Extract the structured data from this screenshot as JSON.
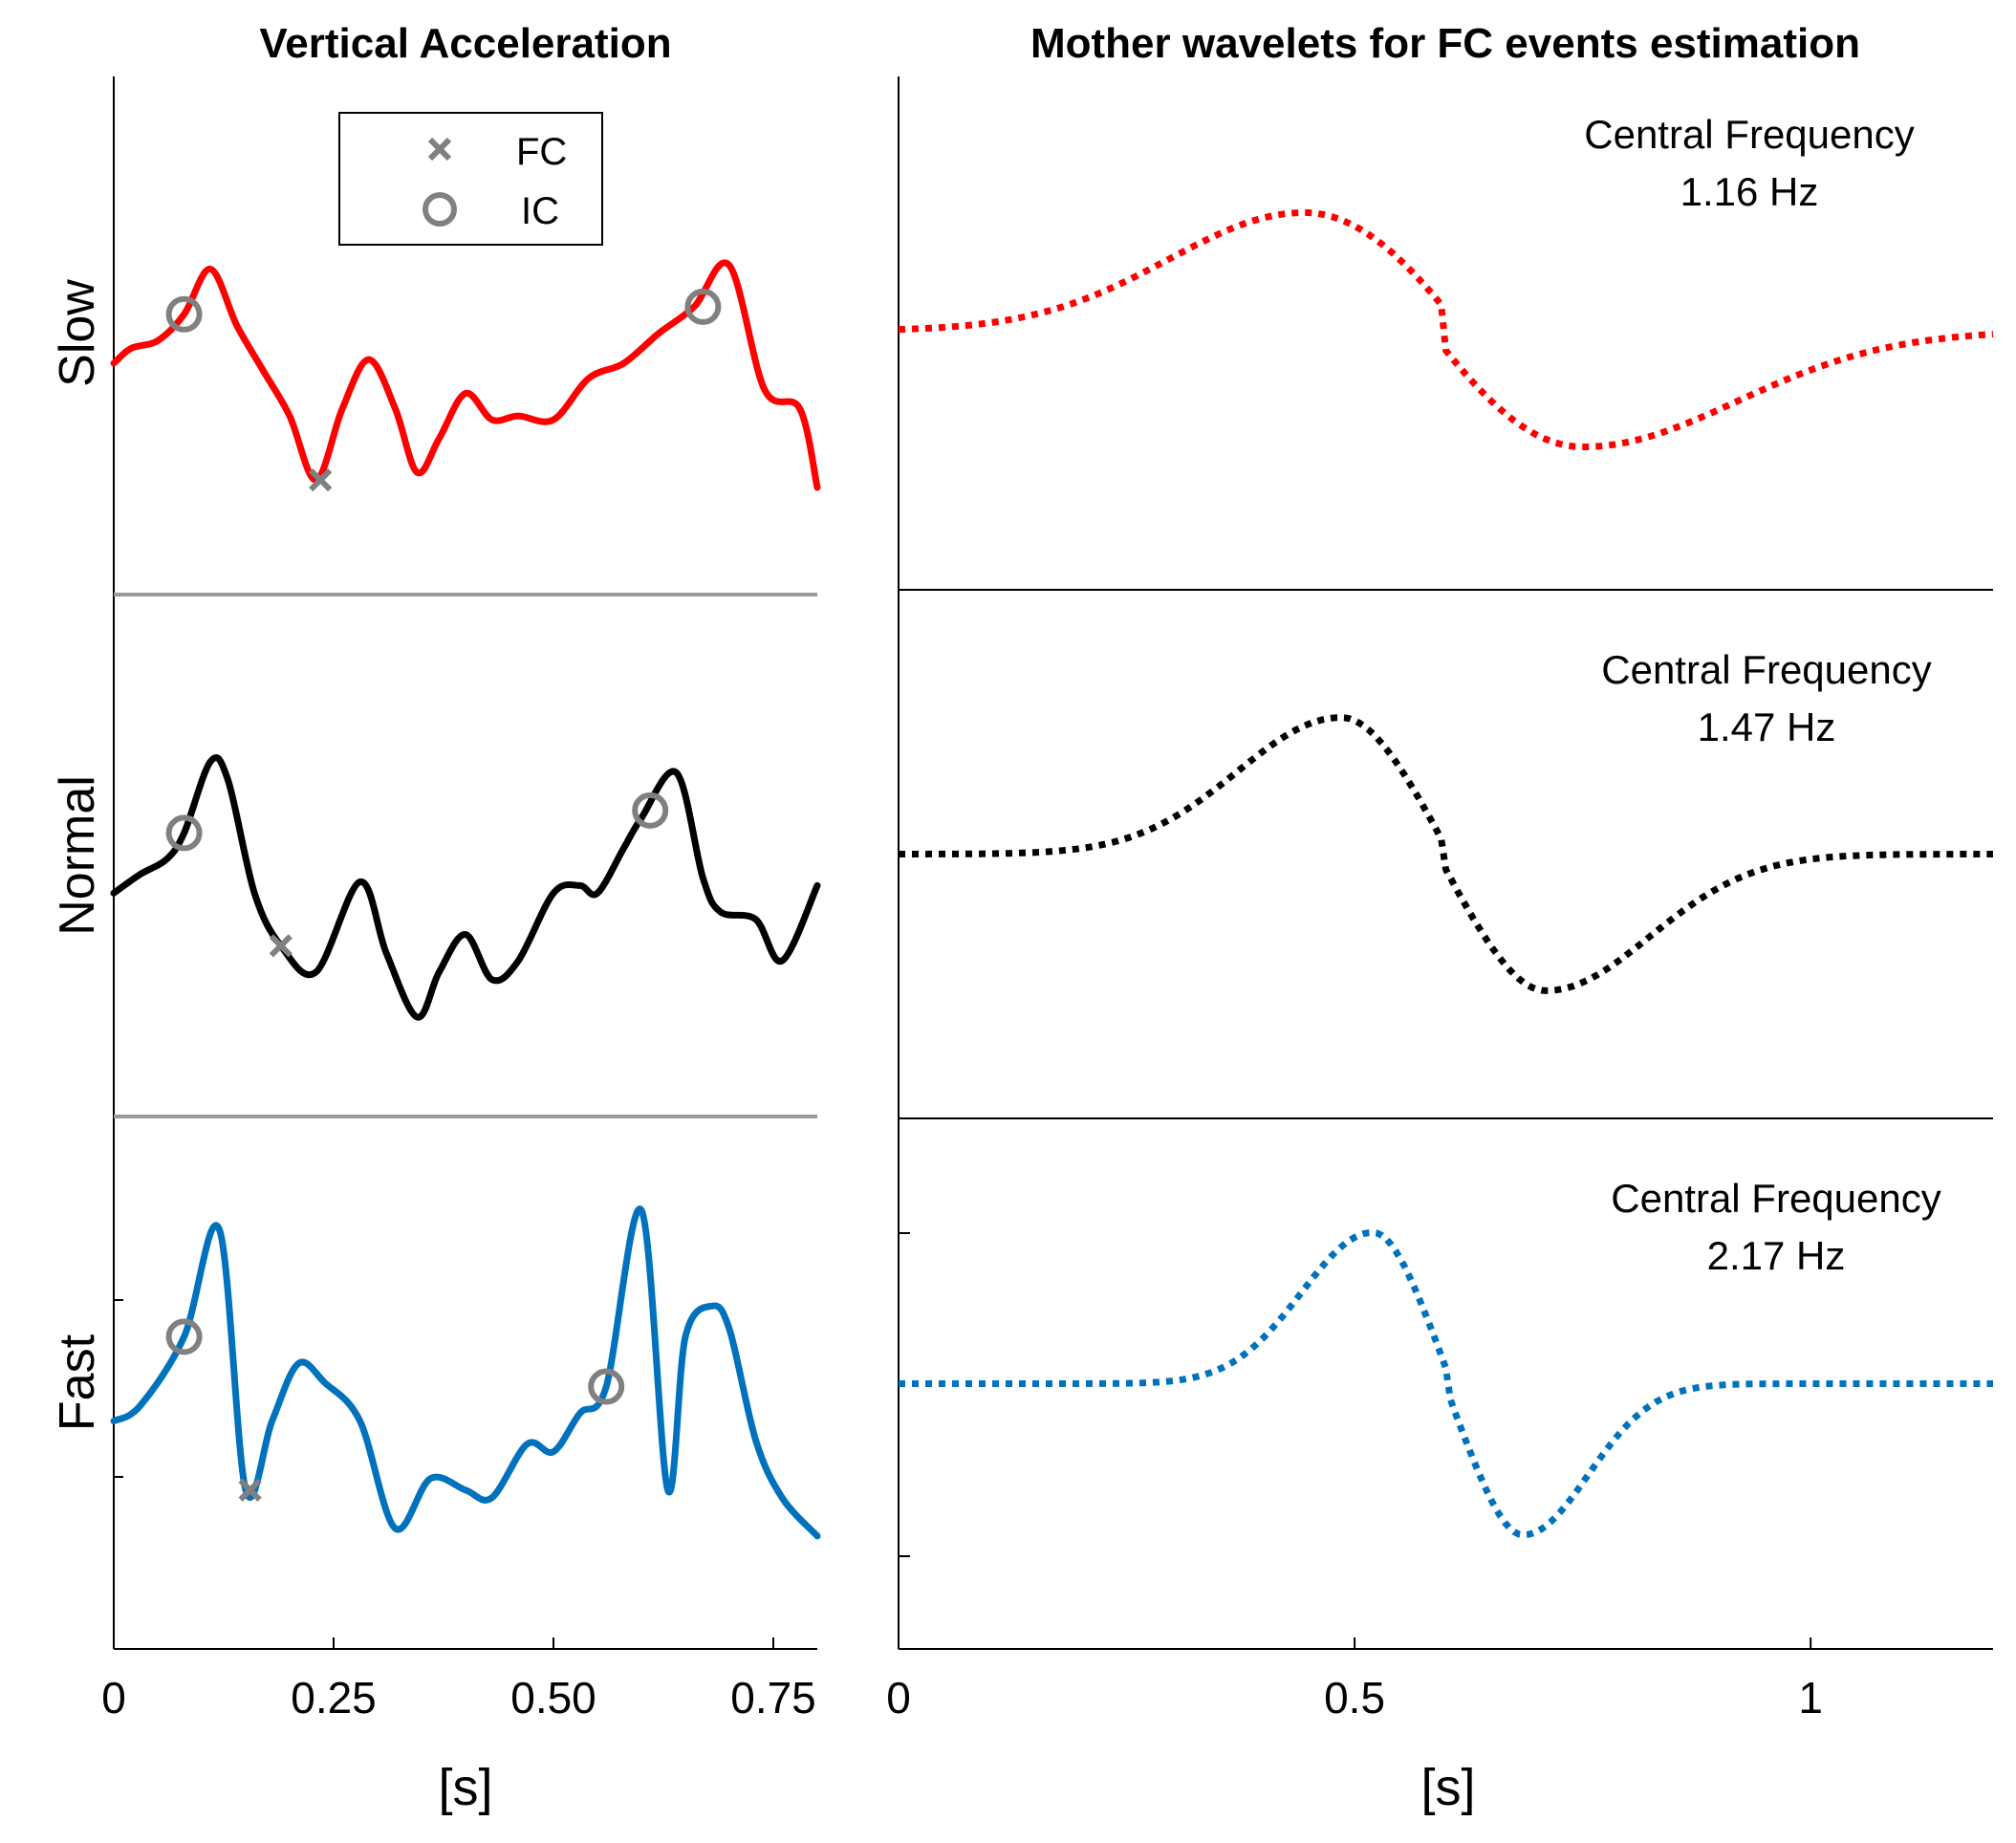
{
  "chart_data": [
    {
      "type": "line",
      "panel": "left",
      "title": "Vertical Acceleration",
      "xlabel": "[s]",
      "xlim": [
        0,
        0.8
      ],
      "x_ticks": [
        0,
        0.25,
        0.5,
        0.75
      ],
      "x_tick_labels": [
        "0",
        "0.25",
        "0.50",
        "0.75"
      ],
      "legend": {
        "placement": "top-center",
        "entries": [
          {
            "label": "FC",
            "marker": "x"
          },
          {
            "label": "IC",
            "marker": "o"
          }
        ]
      },
      "marker_color": "#808080",
      "rows": [
        {
          "name": "Slow",
          "color": "#ff0000",
          "ylim": [
            0,
            100
          ],
          "x": [
            0,
            0.02,
            0.05,
            0.08,
            0.11,
            0.14,
            0.17,
            0.2,
            0.23,
            0.26,
            0.29,
            0.32,
            0.345,
            0.37,
            0.4,
            0.43,
            0.46,
            0.5,
            0.54,
            0.58,
            0.62,
            0.66,
            0.7,
            0.74,
            0.78,
            0.8
          ],
          "y": [
            42,
            46,
            48,
            55,
            67,
            52,
            40,
            28,
            11,
            30,
            43,
            30,
            13,
            22,
            34,
            27,
            28,
            27,
            38,
            42,
            50,
            57,
            68,
            35,
            30,
            9
          ],
          "fc_events": [
            {
              "x": 0.235,
              "y": 11
            }
          ],
          "ic_events": [
            {
              "x": 0.08,
              "y": 55
            },
            {
              "x": 0.67,
              "y": 57
            }
          ]
        },
        {
          "name": "Normal",
          "color": "#000000",
          "ylim": [
            0,
            100
          ],
          "x": [
            0,
            0.03,
            0.06,
            0.08,
            0.11,
            0.13,
            0.16,
            0.19,
            0.23,
            0.28,
            0.31,
            0.345,
            0.37,
            0.4,
            0.43,
            0.46,
            0.5,
            0.53,
            0.55,
            0.58,
            0.6,
            0.64,
            0.67,
            0.69,
            0.73,
            0.76,
            0.8
          ],
          "y": [
            40,
            45,
            49,
            56,
            75,
            70,
            40,
            26,
            19,
            43,
            24,
            7,
            19,
            29,
            17,
            22,
            40,
            42,
            40,
            52,
            60,
            72,
            44,
            35,
            33,
            22,
            42
          ],
          "fc_events": [
            {
              "x": 0.19,
              "y": 26
            }
          ],
          "ic_events": [
            {
              "x": 0.08,
              "y": 56
            },
            {
              "x": 0.61,
              "y": 62
            }
          ]
        },
        {
          "name": "Fast",
          "color": "#0072bd",
          "ylim": [
            0,
            100
          ],
          "x": [
            0,
            0.03,
            0.08,
            0.12,
            0.15,
            0.18,
            0.21,
            0.24,
            0.28,
            0.32,
            0.36,
            0.4,
            0.43,
            0.47,
            0.5,
            0.53,
            0.56,
            0.6,
            0.63,
            0.65,
            0.68,
            0.7,
            0.73,
            0.76,
            0.8
          ],
          "y": [
            40,
            44,
            62,
            90,
            22,
            40,
            55,
            50,
            40,
            12,
            25,
            22,
            20,
            34,
            32,
            42,
            49,
            95,
            22,
            62,
            70,
            64,
            35,
            20,
            10
          ],
          "fc_events": [
            {
              "x": 0.155,
              "y": 22
            }
          ],
          "ic_events": [
            {
              "x": 0.08,
              "y": 62
            },
            {
              "x": 0.56,
              "y": 49
            }
          ]
        }
      ]
    },
    {
      "type": "line",
      "panel": "right",
      "title": "Mother wavelets for FC events estimation",
      "xlabel": "[s]",
      "xlim": [
        0,
        1.2
      ],
      "x_ticks": [
        0,
        0.5,
        1
      ],
      "x_tick_labels": [
        "0",
        "0.5",
        "1"
      ],
      "line_style": "dotted",
      "rows": [
        {
          "name": "Slow",
          "color": "#ff0000",
          "central_frequency_label": "Central Frequency",
          "central_frequency_value": "1.16 Hz",
          "central_frequency_hz": 1.16,
          "ylim": [
            -1,
            1
          ],
          "baseline": 0,
          "peak": {
            "x": 0.445,
            "y": 0.6
          },
          "trough": {
            "x": 0.75,
            "y": -0.59
          },
          "widths": [
            0.21,
            0.165,
            0.16,
            0.24
          ]
        },
        {
          "name": "Normal",
          "color": "#000000",
          "central_frequency_label": "Central Frequency",
          "central_frequency_value": "1.47 Hz",
          "central_frequency_hz": 1.47,
          "ylim": [
            -1,
            1
          ],
          "baseline": 0,
          "peak": {
            "x": 0.485,
            "y": 0.68
          },
          "trough": {
            "x": 0.71,
            "y": -0.68
          },
          "widths": [
            0.16,
            0.1,
            0.1,
            0.16
          ]
        },
        {
          "name": "Fast",
          "color": "#0072bd",
          "central_frequency_label": "Central Frequency",
          "central_frequency_value": "2.17 Hz",
          "central_frequency_hz": 2.17,
          "ylim": [
            -1,
            1
          ],
          "baseline": 0,
          "peak": {
            "x": 0.52,
            "y": 0.75
          },
          "trough": {
            "x": 0.685,
            "y": -0.75
          },
          "widths": [
            0.11,
            0.07,
            0.07,
            0.1
          ]
        }
      ]
    }
  ]
}
